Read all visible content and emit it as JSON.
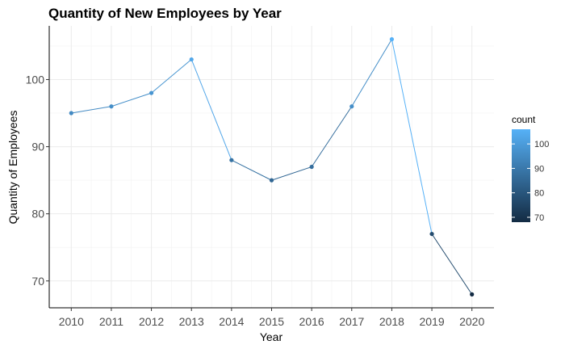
{
  "chart_data": {
    "type": "line",
    "title": "Quantity of New Employees by Year",
    "xlabel": "Year",
    "ylabel": "Quantity of Employees",
    "x": [
      2010,
      2011,
      2012,
      2013,
      2014,
      2015,
      2016,
      2017,
      2018,
      2019,
      2020
    ],
    "values": [
      95,
      96,
      98,
      103,
      88,
      85,
      87,
      96,
      106,
      77,
      68
    ],
    "x_ticks": [
      "2010",
      "2011",
      "2012",
      "2013",
      "2014",
      "2015",
      "2016",
      "2017",
      "2018",
      "2019",
      "2020"
    ],
    "y_ticks": [
      70,
      80,
      90,
      100
    ],
    "xlim": [
      2009.45,
      2020.55
    ],
    "ylim": [
      66,
      108
    ],
    "grid": true,
    "legend": {
      "title": "count",
      "position": "right",
      "ticks": [
        70,
        80,
        90,
        100
      ],
      "range": [
        68,
        106
      ],
      "color_low": "#132B43",
      "color_high": "#56B1F7"
    }
  }
}
